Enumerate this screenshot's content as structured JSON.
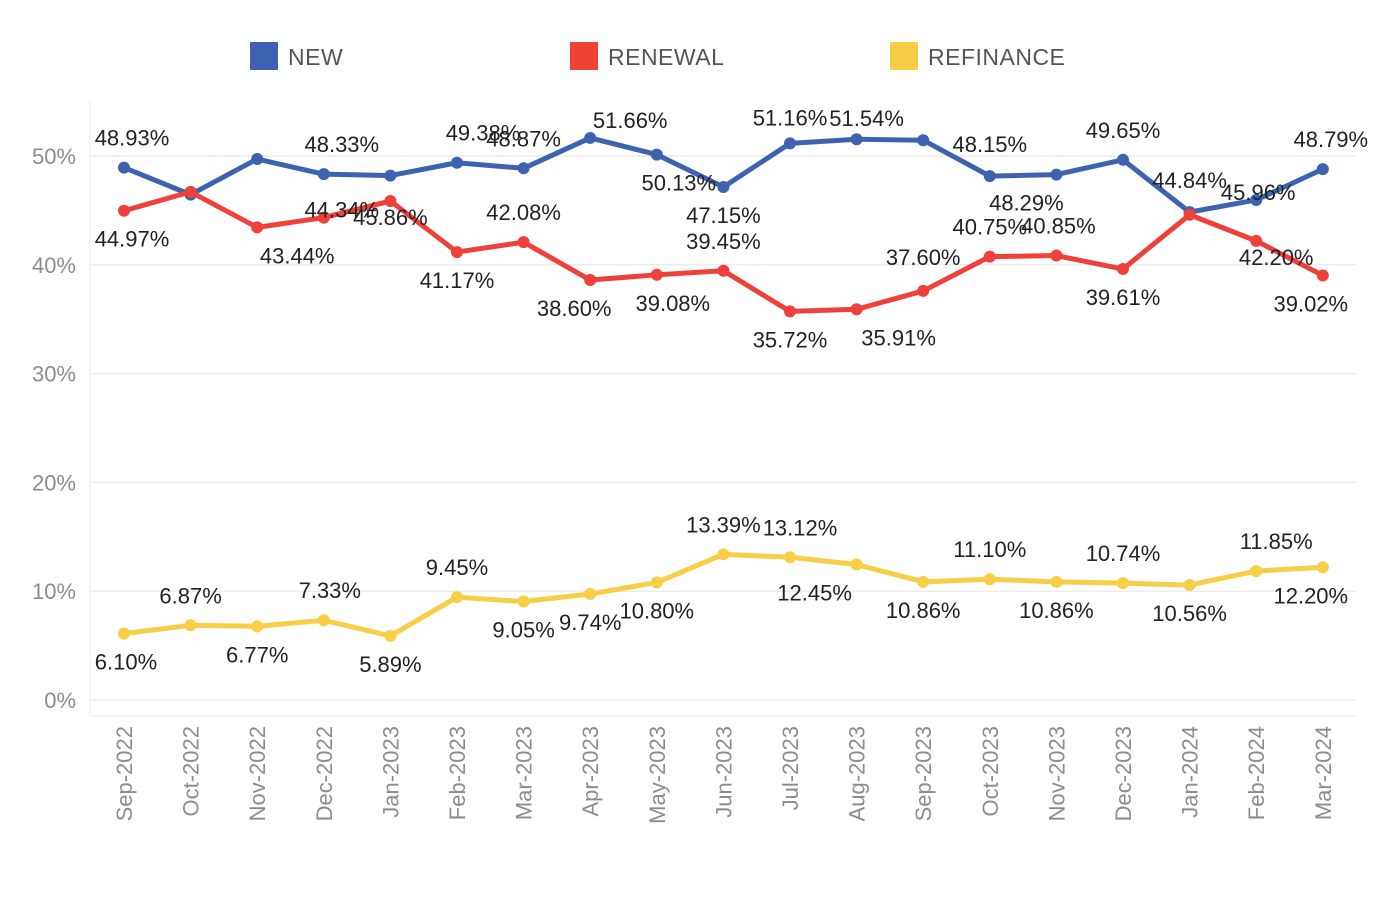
{
  "chart_data": {
    "type": "line",
    "title": "",
    "xlabel": "",
    "ylabel": "",
    "ylim": [
      0,
      55
    ],
    "yticks": [
      "0%",
      "10%",
      "20%",
      "30%",
      "40%",
      "50%"
    ],
    "ytick_values": [
      0,
      10,
      20,
      30,
      40,
      50
    ],
    "grid": "horizontal",
    "legend_position": "top",
    "categories": [
      "Sep-2022",
      "Oct-2022",
      "Nov-2022",
      "Dec-2022",
      "Jan-2023",
      "Feb-2023",
      "Mar-2023",
      "Apr-2023",
      "May-2023",
      "Jun-2023",
      "Jul-2023",
      "Aug-2023",
      "Sep-2023",
      "Oct-2023",
      "Nov-2023",
      "Dec-2023",
      "Jan-2024",
      "Feb-2024",
      "Mar-2024"
    ],
    "series": [
      {
        "name": "NEW",
        "color": "#3d63b0",
        "values": [
          48.93,
          46.45,
          49.72,
          48.33,
          48.2,
          49.38,
          48.87,
          51.66,
          50.13,
          47.15,
          51.16,
          51.54,
          51.45,
          48.15,
          48.29,
          49.65,
          44.84,
          45.96,
          48.79
        ],
        "labels": [
          "48.93%",
          "",
          "",
          "48.33%",
          "",
          "49.38%",
          "48.87%",
          "51.66%",
          "50.13%",
          "47.15%",
          "51.16%",
          "51.54%",
          "",
          "48.15%",
          "48.29%",
          "49.65%",
          "44.84%",
          "45.96%",
          "48.79%"
        ]
      },
      {
        "name": "RENEWAL",
        "color": "#f0403a",
        "values": [
          44.97,
          46.7,
          43.44,
          44.34,
          45.86,
          41.17,
          42.08,
          38.6,
          39.08,
          39.45,
          35.72,
          35.91,
          37.6,
          40.75,
          40.85,
          39.61,
          44.6,
          42.2,
          39.02
        ],
        "labels": [
          "44.97%",
          "",
          "43.44%",
          "44.34%",
          "45.86%",
          "41.17%",
          "42.08%",
          "38.60%",
          "39.08%",
          "39.45%",
          "35.72%",
          "35.91%",
          "37.60%",
          "40.75%",
          "40.85%",
          "39.61%",
          "",
          "42.20%",
          "39.02%"
        ]
      },
      {
        "name": "REFINANCE",
        "color": "#f7ce45",
        "values": [
          6.1,
          6.87,
          6.77,
          7.33,
          5.89,
          9.45,
          9.05,
          9.74,
          10.8,
          13.39,
          13.12,
          12.45,
          10.86,
          11.1,
          10.86,
          10.74,
          10.56,
          11.85,
          12.2
        ],
        "labels": [
          "6.10%",
          "6.87%",
          "6.77%",
          "7.33%",
          "5.89%",
          "9.45%",
          "9.05%",
          "9.74%",
          "10.80%",
          "13.39%",
          "13.12%",
          "12.45%",
          "10.86%",
          "11.10%",
          "10.86%",
          "10.74%",
          "10.56%",
          "11.85%",
          "12.20%"
        ]
      }
    ]
  }
}
